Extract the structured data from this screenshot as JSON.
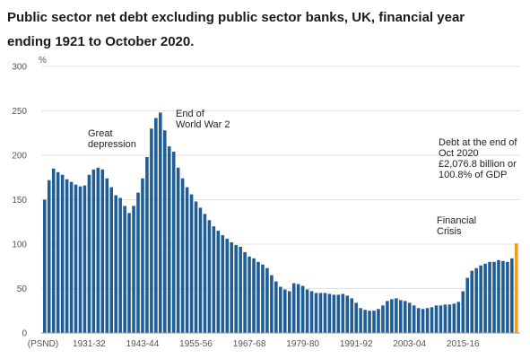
{
  "chart_data": {
    "type": "bar",
    "title_lines": [
      "Public sector net debt excluding public sector banks, UK, financial year",
      "ending 1921 to October 2020."
    ],
    "ylabel": "%",
    "ylim": [
      0,
      300
    ],
    "y_ticks": [
      "0",
      "50",
      "100",
      "150",
      "200",
      "250",
      "300"
    ],
    "x_tick_labels": [
      "(PSND)",
      "1931-32",
      "1943-44",
      "1955-56",
      "1967-68",
      "1979-80",
      "1991-92",
      "2003-04",
      "2015-16"
    ],
    "grid": true,
    "series": [
      {
        "values": [
          150,
          172,
          185,
          181,
          178,
          173,
          170,
          167,
          165,
          166,
          178,
          184,
          186,
          184,
          174,
          164,
          155,
          152,
          143,
          135,
          143,
          158,
          174,
          198,
          230,
          242,
          248,
          228,
          210,
          204,
          186,
          174,
          164,
          156,
          148,
          141,
          134,
          127,
          120,
          115,
          110,
          106,
          102,
          99,
          97,
          91,
          86,
          84,
          80,
          77,
          73,
          65,
          58,
          52,
          49,
          47,
          56,
          55,
          53,
          49,
          47,
          45,
          45,
          45,
          44,
          43,
          43,
          44,
          42,
          39,
          34,
          28,
          26,
          25,
          25,
          27,
          31,
          36,
          38,
          39,
          37,
          36,
          34,
          31,
          28,
          27,
          28,
          29,
          31,
          31,
          32,
          32,
          33,
          35,
          47,
          62,
          70,
          73,
          76,
          78,
          80,
          80,
          82,
          81,
          80,
          84,
          100.8
        ]
      }
    ],
    "highlight": {
      "index": 106,
      "color": "#f39a1f",
      "label": "Oct 2020"
    },
    "bar_color": "#1f5d96",
    "annotations": [
      {
        "lines": [
          "Great",
          "depression"
        ]
      },
      {
        "lines": [
          "End of",
          "World War 2"
        ]
      },
      {
        "lines": [
          "Debt at the end of",
          "Oct 2020",
          "£2,076.8 billion or",
          "100.8% of GDP"
        ]
      },
      {
        "lines": [
          "Financial",
          "Crisis"
        ]
      }
    ]
  }
}
